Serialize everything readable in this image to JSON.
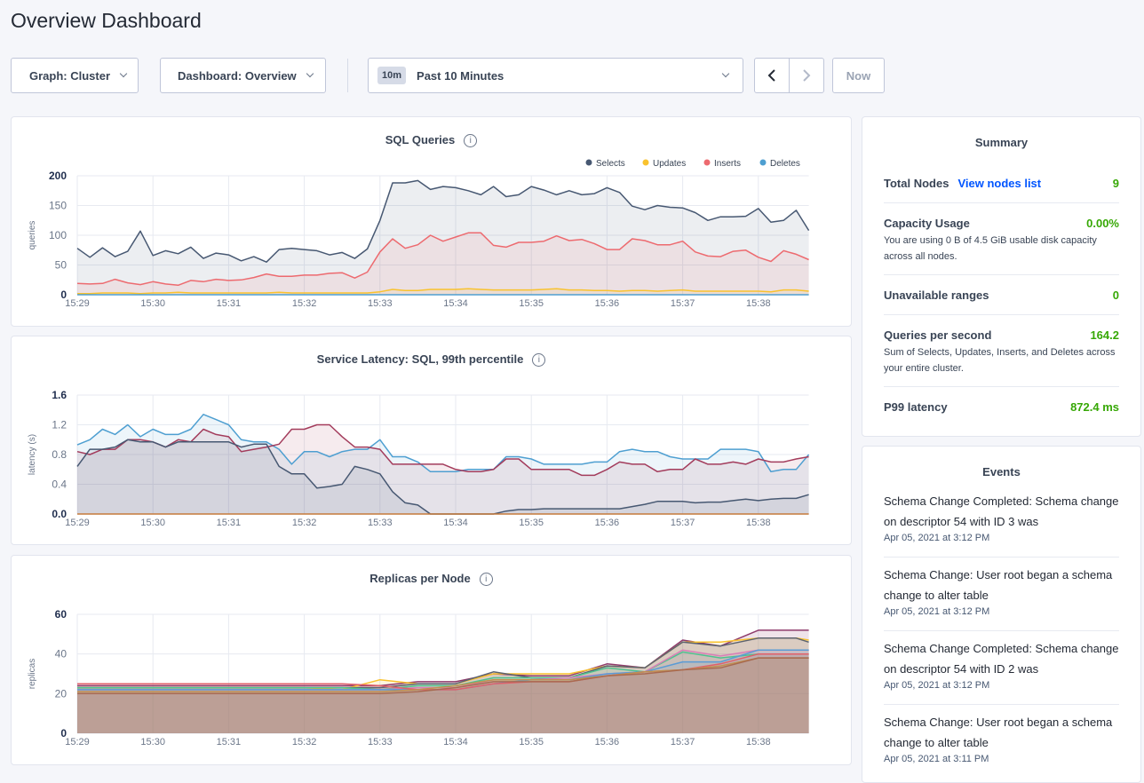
{
  "page": {
    "title": "Overview Dashboard"
  },
  "toolbar": {
    "graph": "Graph: Cluster",
    "dashboard": "Dashboard: Overview",
    "time_badge": "10m",
    "time_range": "Past 10 Minutes",
    "now": "Now",
    "icons": {
      "prev": "chevron-left-icon",
      "next": "chevron-right-icon",
      "dropdown": "chevron-down-icon"
    }
  },
  "summary": {
    "title": "Summary",
    "total_nodes": {
      "label": "Total Nodes",
      "link": "View nodes list",
      "value": "9"
    },
    "capacity": {
      "label": "Capacity Usage",
      "value": "0.00%",
      "desc": "You are using 0 B of 4.5 GiB usable disk capacity across all nodes."
    },
    "unavailable": {
      "label": "Unavailable ranges",
      "value": "0"
    },
    "qps": {
      "label": "Queries per second",
      "value": "164.2",
      "desc": "Sum of Selects, Updates, Inserts, and Deletes across your entire cluster."
    },
    "p99": {
      "label": "P99 latency",
      "value": "872.4 ms"
    },
    "colors": {
      "value": "#37a806",
      "link": "#0055ff"
    }
  },
  "events": {
    "title": "Events",
    "items": [
      {
        "text": "Schema Change Completed: Schema change on descriptor 54 with ID 3 was",
        "date": "Apr 05, 2021 at 3:12 PM"
      },
      {
        "text": "Schema Change: User root began a schema change to alter table",
        "date": "Apr 05, 2021 at 3:12 PM"
      },
      {
        "text": "Schema Change Completed: Schema change on descriptor 54 with ID 2 was",
        "date": "Apr 05, 2021 at 3:12 PM"
      },
      {
        "text": "Schema Change: User root began a schema change to alter table",
        "date": "Apr 05, 2021 at 3:11 PM"
      }
    ]
  },
  "chart_data": [
    {
      "type": "line",
      "title": "SQL Queries",
      "ylabel": "queries",
      "ylim": [
        0,
        200
      ],
      "yticks": [
        "0",
        "50",
        "100",
        "150",
        "200"
      ],
      "xticks": [
        "15:29",
        "15:30",
        "15:31",
        "15:32",
        "15:33",
        "15:34",
        "15:35",
        "15:36",
        "15:37",
        "15:38"
      ],
      "grid": true,
      "legend": "top-right",
      "area": true,
      "x": [
        "15:29:00",
        "15:29:10",
        "15:29:20",
        "15:29:30",
        "15:29:40",
        "15:29:50",
        "15:30:00",
        "15:30:10",
        "15:30:20",
        "15:30:30",
        "15:30:40",
        "15:30:50",
        "15:31:00",
        "15:31:10",
        "15:31:20",
        "15:31:30",
        "15:31:40",
        "15:31:50",
        "15:32:00",
        "15:32:10",
        "15:32:20",
        "15:32:30",
        "15:32:40",
        "15:32:50",
        "15:33:00",
        "15:33:10",
        "15:33:20",
        "15:33:30",
        "15:33:40",
        "15:33:50",
        "15:34:00",
        "15:34:10",
        "15:34:20",
        "15:34:30",
        "15:34:40",
        "15:34:50",
        "15:35:00",
        "15:35:10",
        "15:35:20",
        "15:35:30",
        "15:35:40",
        "15:35:50",
        "15:36:00",
        "15:36:10",
        "15:36:20",
        "15:36:30",
        "15:36:40",
        "15:36:50",
        "15:37:00",
        "15:37:10",
        "15:37:20",
        "15:37:30",
        "15:37:40",
        "15:37:50",
        "15:38:00",
        "15:38:10",
        "15:38:20",
        "15:38:30",
        "15:38:40"
      ],
      "series": [
        {
          "name": "Selects",
          "color": "#475872",
          "values": [
            78,
            63,
            79,
            64,
            73,
            107,
            66,
            74,
            69,
            80,
            61,
            70,
            67,
            57,
            64,
            55,
            76,
            78,
            76,
            74,
            67,
            71,
            61,
            77,
            125,
            188,
            188,
            192,
            177,
            182,
            180,
            175,
            168,
            182,
            165,
            168,
            182,
            176,
            168,
            175,
            168,
            170,
            180,
            172,
            149,
            143,
            150,
            147,
            146,
            138,
            125,
            131,
            131,
            132,
            145,
            122,
            125,
            142,
            108
          ]
        },
        {
          "name": "Updates",
          "color": "#f9c22e",
          "values": [
            2,
            2,
            3,
            3,
            3,
            2,
            3,
            3,
            4,
            3,
            3,
            3,
            3,
            3,
            3,
            3,
            4,
            3,
            3,
            3,
            3,
            3,
            3,
            3,
            5,
            9,
            7,
            7,
            9,
            9,
            9,
            10,
            9,
            8,
            8,
            8,
            8,
            9,
            10,
            8,
            8,
            7,
            7,
            6,
            7,
            7,
            6,
            7,
            8,
            6,
            6,
            6,
            6,
            6,
            6,
            5,
            8,
            8,
            6
          ]
        },
        {
          "name": "Inserts",
          "color": "#ed6a6f",
          "values": [
            19,
            18,
            19,
            26,
            20,
            17,
            22,
            18,
            16,
            24,
            22,
            26,
            24,
            25,
            29,
            35,
            31,
            31,
            33,
            33,
            36,
            37,
            28,
            38,
            72,
            94,
            78,
            84,
            100,
            90,
            97,
            104,
            104,
            83,
            80,
            88,
            88,
            90,
            99,
            91,
            93,
            86,
            76,
            76,
            94,
            91,
            84,
            84,
            90,
            72,
            65,
            64,
            73,
            75,
            63,
            56,
            74,
            68,
            59
          ]
        },
        {
          "name": "Deletes",
          "color": "#4e9fd1",
          "values": [
            0,
            0,
            0,
            0,
            0,
            0,
            0,
            0,
            0,
            0,
            0,
            0,
            0,
            0,
            0,
            0,
            0,
            0,
            0,
            0,
            0,
            0,
            0,
            0,
            0,
            0,
            0,
            0,
            0,
            0,
            0,
            0,
            0,
            0,
            0,
            0,
            0,
            0,
            0,
            0,
            0,
            0,
            0,
            0,
            0,
            0,
            0,
            0,
            0,
            0,
            0,
            0,
            0,
            0,
            0,
            0,
            0,
            0,
            0
          ]
        }
      ]
    },
    {
      "type": "line",
      "title": "Service Latency: SQL, 99th percentile",
      "ylabel": "latency (s)",
      "ylim": [
        0,
        1.6
      ],
      "yticks": [
        "0.0",
        "0.4",
        "0.8",
        "1.2",
        "1.6"
      ],
      "xticks": [
        "15:29",
        "15:30",
        "15:31",
        "15:32",
        "15:33",
        "15:34",
        "15:35",
        "15:36",
        "15:37",
        "15:38"
      ],
      "grid": true,
      "area": true,
      "x": [
        "15:29:00",
        "15:29:10",
        "15:29:20",
        "15:29:30",
        "15:29:40",
        "15:29:50",
        "15:30:00",
        "15:30:10",
        "15:30:20",
        "15:30:30",
        "15:30:40",
        "15:30:50",
        "15:31:00",
        "15:31:10",
        "15:31:20",
        "15:31:30",
        "15:31:40",
        "15:31:50",
        "15:32:00",
        "15:32:10",
        "15:32:20",
        "15:32:30",
        "15:32:40",
        "15:32:50",
        "15:33:00",
        "15:33:10",
        "15:33:20",
        "15:33:30",
        "15:33:40",
        "15:33:50",
        "15:34:00",
        "15:34:10",
        "15:34:20",
        "15:34:30",
        "15:34:40",
        "15:34:50",
        "15:35:00",
        "15:35:10",
        "15:35:20",
        "15:35:30",
        "15:35:40",
        "15:35:50",
        "15:36:00",
        "15:36:10",
        "15:36:20",
        "15:36:30",
        "15:36:40",
        "15:36:50",
        "15:37:00",
        "15:37:10",
        "15:37:20",
        "15:37:30",
        "15:37:40",
        "15:37:50",
        "15:38:00",
        "15:38:10",
        "15:38:20",
        "15:38:30",
        "15:38:40"
      ],
      "series": [
        {
          "color": "#4e9fd1",
          "values": [
            0.93,
            1.0,
            1.14,
            1.07,
            1.2,
            1.04,
            1.14,
            1.07,
            1.07,
            1.14,
            1.34,
            1.27,
            1.2,
            1.0,
            0.97,
            0.97,
            0.87,
            0.67,
            0.84,
            0.84,
            0.77,
            0.84,
            0.87,
            0.87,
            1.0,
            0.77,
            0.77,
            0.7,
            0.57,
            0.57,
            0.57,
            0.6,
            0.6,
            0.6,
            0.77,
            0.77,
            0.74,
            0.67,
            0.67,
            0.67,
            0.67,
            0.7,
            0.7,
            0.84,
            0.87,
            0.84,
            0.84,
            0.77,
            0.74,
            0.74,
            0.74,
            0.87,
            0.87,
            0.87,
            0.84,
            0.57,
            0.6,
            0.6,
            0.8
          ]
        },
        {
          "color": "#a33c5c",
          "values": [
            0.84,
            0.8,
            0.87,
            0.87,
            1.0,
            1.0,
            0.97,
            0.9,
            1.0,
            0.97,
            1.14,
            1.07,
            1.04,
            0.84,
            0.87,
            0.9,
            0.94,
            1.14,
            1.14,
            1.2,
            1.2,
            1.04,
            0.9,
            0.9,
            0.87,
            0.67,
            0.67,
            0.67,
            0.67,
            0.67,
            0.6,
            0.57,
            0.57,
            0.6,
            0.74,
            0.74,
            0.6,
            0.6,
            0.6,
            0.6,
            0.52,
            0.52,
            0.6,
            0.7,
            0.67,
            0.67,
            0.57,
            0.6,
            0.6,
            0.74,
            0.67,
            0.67,
            0.7,
            0.67,
            0.74,
            0.7,
            0.7,
            0.74,
            0.77
          ]
        },
        {
          "color": "#475872",
          "values": [
            0.64,
            0.87,
            0.87,
            0.9,
            1.0,
            0.97,
            0.97,
            0.9,
            0.97,
            0.97,
            0.97,
            0.97,
            0.97,
            0.9,
            0.94,
            0.94,
            0.64,
            0.54,
            0.54,
            0.35,
            0.37,
            0.4,
            0.64,
            0.6,
            0.54,
            0.3,
            0.15,
            0.12,
            0,
            0,
            0,
            0,
            0,
            0,
            0.04,
            0.06,
            0.06,
            0.07,
            0.07,
            0.07,
            0.07,
            0.07,
            0.07,
            0.07,
            0.1,
            0.13,
            0.17,
            0.17,
            0.17,
            0.15,
            0.16,
            0.16,
            0.18,
            0.2,
            0.18,
            0.2,
            0.21,
            0.21,
            0.26
          ]
        },
        {
          "color": "#c57a3b",
          "values": [
            0,
            0,
            0,
            0,
            0,
            0,
            0,
            0,
            0,
            0,
            0,
            0,
            0,
            0,
            0,
            0,
            0,
            0,
            0,
            0,
            0,
            0,
            0,
            0,
            0,
            0,
            0,
            0,
            0,
            0,
            0,
            0,
            0,
            0,
            0,
            0,
            0,
            0,
            0,
            0,
            0,
            0,
            0,
            0,
            0,
            0,
            0,
            0,
            0,
            0,
            0,
            0,
            0,
            0,
            0,
            0,
            0,
            0,
            0
          ]
        }
      ]
    },
    {
      "type": "area",
      "title": "Replicas per Node",
      "ylabel": "replicas",
      "ylim": [
        0,
        60
      ],
      "yticks": [
        "0",
        "20",
        "40",
        "60"
      ],
      "xticks": [
        "15:29",
        "15:30",
        "15:31",
        "15:32",
        "15:33",
        "15:34",
        "15:35",
        "15:36",
        "15:37",
        "15:38"
      ],
      "grid": true,
      "area": true,
      "x": [
        "15:29:00",
        "15:29:30",
        "15:30:00",
        "15:30:30",
        "15:31:00",
        "15:31:30",
        "15:32:00",
        "15:32:30",
        "15:33:00",
        "15:33:30",
        "15:34:00",
        "15:34:30",
        "15:35:00",
        "15:35:30",
        "15:36:00",
        "15:36:30",
        "15:37:00",
        "15:37:30",
        "15:38:00",
        "15:38:30",
        "15:38:40"
      ],
      "series": [
        {
          "color": "#8e3b6b",
          "values": [
            24,
            24,
            24,
            24,
            24,
            24,
            24,
            24,
            24,
            26,
            26,
            30,
            29,
            29,
            35,
            33,
            47,
            44,
            52,
            52,
            52
          ]
        },
        {
          "color": "#f9c22e",
          "values": [
            23,
            23,
            23,
            23,
            23,
            23,
            23,
            22,
            27,
            25,
            25,
            30,
            30,
            30,
            34,
            33,
            46,
            46,
            48,
            48,
            47
          ]
        },
        {
          "color": "#5c6370",
          "values": [
            23,
            23,
            23,
            23,
            23,
            23,
            23,
            23,
            23,
            25,
            25,
            31,
            28,
            28,
            34,
            33,
            46,
            44,
            48,
            48,
            46
          ]
        },
        {
          "color": "#4fc28f",
          "values": [
            23,
            23,
            23,
            23,
            23,
            23,
            23,
            23,
            22,
            24,
            24,
            28,
            28,
            28,
            33,
            31,
            41,
            38,
            40,
            40,
            40
          ]
        },
        {
          "color": "#d97fb7",
          "values": [
            22,
            22,
            22,
            22,
            22,
            22,
            22,
            22,
            22,
            23,
            23,
            27,
            27,
            28,
            30,
            31,
            42,
            39,
            42,
            42,
            42
          ]
        },
        {
          "color": "#5b9bd5",
          "values": [
            22,
            22,
            22,
            22,
            22,
            22,
            22,
            22,
            22,
            22,
            22,
            25,
            27,
            27,
            30,
            31,
            36,
            36,
            42,
            42,
            42
          ]
        },
        {
          "color": "#e0606a",
          "values": [
            25,
            25,
            25,
            25,
            25,
            25,
            25,
            25,
            24,
            22,
            22,
            25,
            26,
            26,
            29,
            31,
            32,
            35,
            40,
            40,
            40
          ]
        },
        {
          "color": "#c09050",
          "values": [
            21,
            21,
            21,
            21,
            21,
            21,
            21,
            21,
            21,
            22,
            24,
            27,
            27,
            27,
            29,
            31,
            32,
            34,
            38,
            38,
            38
          ]
        },
        {
          "color": "#a86a50",
          "values": [
            20,
            20,
            20,
            20,
            20,
            20,
            20,
            20,
            20,
            21,
            23,
            26,
            26,
            26,
            29,
            30,
            32,
            33,
            38,
            38,
            38
          ]
        }
      ]
    }
  ]
}
